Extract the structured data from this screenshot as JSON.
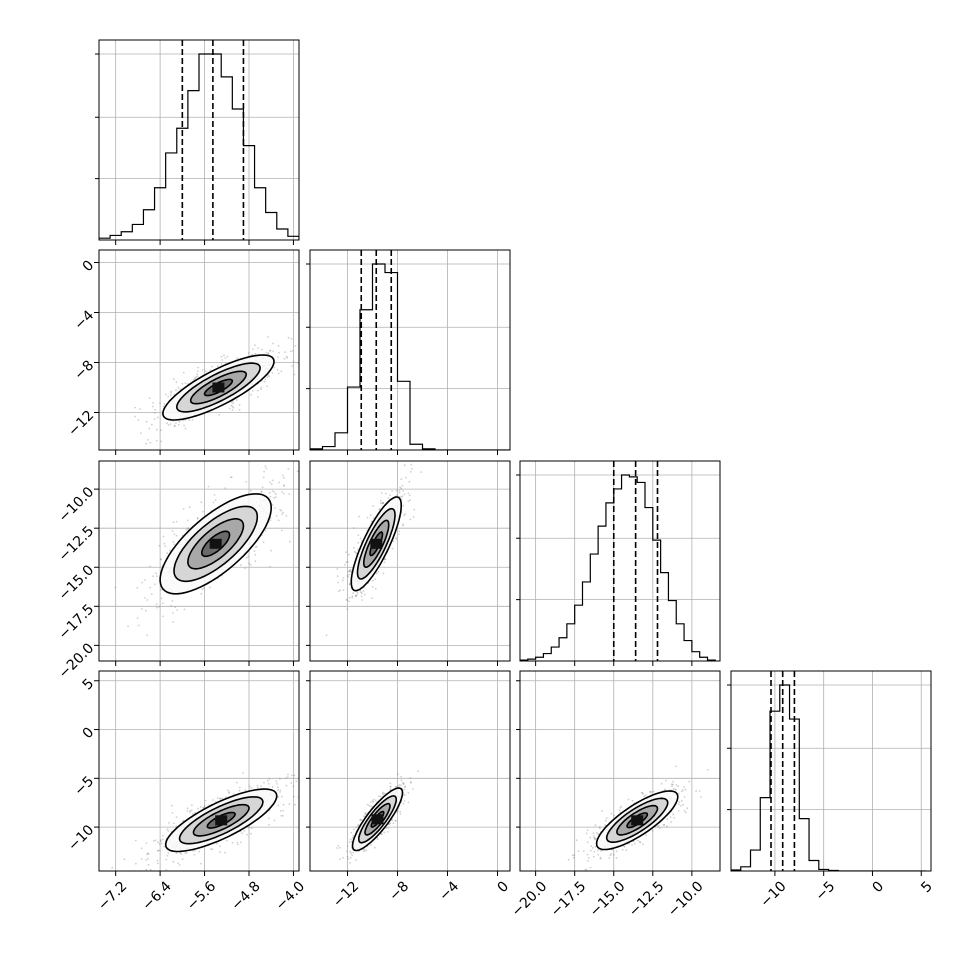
{
  "chart_data": {
    "type": "corner",
    "parameters": [
      {
        "range": [
          -7.5,
          -3.9
        ],
        "xticks": [
          -7.2,
          -6.4,
          -5.6,
          -4.8,
          -4.0
        ],
        "xtick_labels": [
          "−7.2",
          "−6.4",
          "−5.6",
          "−4.8",
          "−4.0"
        ],
        "yticks": [],
        "ytick_labels": [],
        "quantiles": [
          -6.0,
          -5.45,
          -4.9
        ],
        "hist_edges": [
          -7.5,
          -7.3,
          -7.1,
          -6.9,
          -6.7,
          -6.5,
          -6.3,
          -6.1,
          -5.9,
          -5.7,
          -5.5,
          -5.3,
          -5.1,
          -4.9,
          -4.7,
          -4.5,
          -4.3,
          -4.1,
          -3.9
        ],
        "hist_counts": [
          2,
          5,
          9,
          17,
          33,
          57,
          95,
          122,
          163,
          203,
          203,
          178,
          143,
          103,
          57,
          30,
          12,
          4
        ]
      },
      {
        "range": [
          -15,
          1
        ],
        "xticks": [
          -12,
          -8,
          -4,
          0
        ],
        "xtick_labels": [
          "−12",
          "−8",
          "−4",
          "0"
        ],
        "yticks": [
          0,
          -4,
          -8,
          -12
        ],
        "ytick_labels": [
          "0",
          "−4",
          "−8",
          "−12"
        ],
        "quantiles": [
          -10.9,
          -9.7,
          -8.5
        ],
        "hist_edges": [
          -15,
          -14,
          -13,
          -12,
          -11,
          -10,
          -9,
          -8,
          -7,
          -6,
          -5,
          -4,
          -3,
          -2,
          -1,
          0,
          1
        ],
        "hist_counts": [
          2,
          6,
          30,
          110,
          245,
          325,
          310,
          120,
          10,
          2,
          0,
          0,
          0,
          0,
          0,
          0
        ]
      },
      {
        "range": [
          -21,
          -8.2
        ],
        "xticks": [
          -20.0,
          -17.5,
          -15.0,
          -12.5,
          -10.0
        ],
        "xtick_labels": [
          "−20.0",
          "−17.5",
          "−15.0",
          "−12.5",
          "−10.0"
        ],
        "yticks": [
          -10.0,
          -12.5,
          -15.0,
          -17.5,
          -20.0
        ],
        "ytick_labels": [
          "−10.0",
          "−12.5",
          "−15.0",
          "−17.5",
          "−20.0"
        ],
        "quantiles": [
          -15.0,
          -13.6,
          -12.2
        ],
        "hist_edges": [
          -21,
          -20.5,
          -20,
          -19.5,
          -19,
          -18.5,
          -18,
          -17.5,
          -17,
          -16.5,
          -16,
          -15.5,
          -15,
          -14.5,
          -14,
          -13.5,
          -13,
          -12.5,
          -12,
          -11.5,
          -11,
          -10.5,
          -10,
          -9.5,
          -9,
          -8.5
        ],
        "hist_counts": [
          1,
          2,
          4,
          8,
          15,
          25,
          40,
          60,
          85,
          115,
          145,
          170,
          185,
          200,
          198,
          192,
          165,
          130,
          95,
          65,
          40,
          22,
          10,
          4,
          1
        ]
      },
      {
        "range": [
          -14.5,
          6
        ],
        "xticks": [
          -10,
          -5,
          0,
          5
        ],
        "xtick_labels": [
          "−10",
          "−5",
          "0",
          "5"
        ],
        "yticks": [
          5,
          0,
          -5,
          -10
        ],
        "ytick_labels": [
          "5",
          "0",
          "−5",
          "−10"
        ],
        "quantiles": [
          -10.4,
          -9.2,
          -8.0
        ],
        "hist_edges": [
          -14.5,
          -13.5,
          -12.5,
          -11.5,
          -10.5,
          -9.5,
          -8.5,
          -7.5,
          -6.5,
          -5.5,
          -4.5,
          -3.5,
          -2.5,
          -1.5,
          -0.5,
          0.5,
          1.5,
          2.5,
          3.5,
          4.5,
          5.5
        ],
        "hist_counts": [
          2,
          8,
          40,
          140,
          305,
          355,
          290,
          100,
          20,
          3,
          1,
          0,
          0,
          0,
          0,
          0,
          0,
          0,
          0,
          0
        ]
      }
    ],
    "pairs": [
      {
        "row": 1,
        "col": 0,
        "mean": [
          -5.35,
          -10.0
        ],
        "sd": [
          0.5,
          1.3
        ],
        "rho": 0.8
      },
      {
        "row": 2,
        "col": 0,
        "mean": [
          -5.4,
          -13.5
        ],
        "sd": [
          0.5,
          1.6
        ],
        "rho": 0.72
      },
      {
        "row": 2,
        "col": 1,
        "mean": [
          -9.7,
          -13.5
        ],
        "sd": [
          1.0,
          1.5
        ],
        "rho": 0.82
      },
      {
        "row": 3,
        "col": 0,
        "mean": [
          -5.3,
          -9.3
        ],
        "sd": [
          0.5,
          1.6
        ],
        "rho": 0.78
      },
      {
        "row": 3,
        "col": 1,
        "mean": [
          -9.6,
          -9.2
        ],
        "sd": [
          1.0,
          1.6
        ],
        "rho": 0.85
      },
      {
        "row": 3,
        "col": 2,
        "mean": [
          -13.5,
          -9.3
        ],
        "sd": [
          1.3,
          1.5
        ],
        "rho": 0.8
      }
    ],
    "grid": true
  }
}
